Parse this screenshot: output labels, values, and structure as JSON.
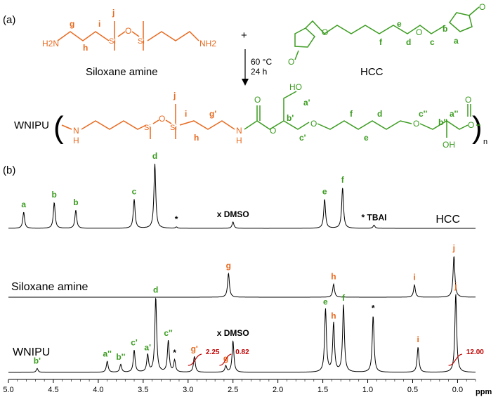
{
  "colors": {
    "siloxane": "#e8691e",
    "hcc": "#3a9b1f",
    "integral": "#c00000",
    "trace": "#000000"
  },
  "panel_a": {
    "label": "(a)",
    "siloxane_name": "Siloxane amine",
    "hcc_name": "HCC",
    "plus": "+",
    "conditions": [
      "60 °C",
      "24 h"
    ],
    "product_name": "WNIPU",
    "siloxane_letters": [
      "g",
      "h",
      "i",
      "j"
    ],
    "hcc_letters": [
      "a",
      "b",
      "c",
      "d",
      "e",
      "f"
    ],
    "product_letters_siloxane": [
      "i",
      "j",
      "g'",
      "h"
    ],
    "product_letters_hcc": [
      "a'",
      "b'",
      "c'",
      "d",
      "e",
      "f",
      "c''",
      "b''",
      "a''"
    ],
    "atoms": {
      "h2n": "H2N",
      "nh2": "NH2",
      "si": "Si",
      "o": "O",
      "n": "N",
      "h": "H",
      "ho": "HO",
      "oh": "OH",
      "n_sub": "n"
    }
  },
  "panel_b": {
    "label": "(b)"
  },
  "chart_data": {
    "type": "line",
    "title": "",
    "xlabel": "ppm",
    "xlim": [
      5.0,
      -0.2
    ],
    "x_reversed": true,
    "xticks": [
      "5.0",
      "4.5",
      "4.0",
      "3.5",
      "3.0",
      "2.5",
      "2.0",
      "1.5",
      "1.0",
      "0.5",
      "0.0"
    ],
    "series": [
      {
        "name": "HCC",
        "peaks": [
          {
            "ppm": 4.83,
            "height": 0.25,
            "label": "a",
            "color": "hcc"
          },
          {
            "ppm": 4.49,
            "height": 0.4,
            "label": "b",
            "color": "hcc"
          },
          {
            "ppm": 4.25,
            "height": 0.28,
            "label": "b",
            "color": "hcc"
          },
          {
            "ppm": 3.6,
            "height": 0.45,
            "label": "c",
            "color": "hcc"
          },
          {
            "ppm": 3.37,
            "height": 1.0,
            "label": "d",
            "color": "hcc"
          },
          {
            "ppm": 3.13,
            "height": 0.02,
            "label": "*",
            "color": "trace"
          },
          {
            "ppm": 2.5,
            "height": 0.1,
            "label": "x DMSO",
            "color": "trace"
          },
          {
            "ppm": 1.48,
            "height": 0.45,
            "label": "e",
            "color": "hcc"
          },
          {
            "ppm": 1.28,
            "height": 0.63,
            "label": "f",
            "color": "hcc"
          },
          {
            "ppm": 0.93,
            "height": 0.05,
            "label": "* TBAI",
            "color": "trace"
          }
        ]
      },
      {
        "name": "Siloxane amine",
        "peaks": [
          {
            "ppm": 2.55,
            "height": 0.55,
            "label": "g",
            "color": "siloxane"
          },
          {
            "ppm": 1.38,
            "height": 0.3,
            "label": "h",
            "color": "siloxane"
          },
          {
            "ppm": 0.48,
            "height": 0.28,
            "label": "i",
            "color": "siloxane"
          },
          {
            "ppm": 0.04,
            "height": 0.95,
            "label": "j",
            "color": "siloxane"
          }
        ]
      },
      {
        "name": "WNIPU",
        "peaks": [
          {
            "ppm": 4.68,
            "height": 0.05,
            "label": "b'",
            "color": "hcc"
          },
          {
            "ppm": 3.9,
            "height": 0.14,
            "label": "a''",
            "color": "hcc"
          },
          {
            "ppm": 3.75,
            "height": 0.1,
            "label": "b''",
            "color": "hcc"
          },
          {
            "ppm": 3.6,
            "height": 0.28,
            "label": "c'",
            "color": "hcc"
          },
          {
            "ppm": 3.45,
            "height": 0.22,
            "label": "a'",
            "color": "hcc"
          },
          {
            "ppm": 3.36,
            "height": 0.95,
            "label": "d",
            "color": "hcc"
          },
          {
            "ppm": 3.22,
            "height": 0.4,
            "label": "c''",
            "color": "hcc"
          },
          {
            "ppm": 3.15,
            "height": 0.15,
            "label": "*",
            "color": "trace"
          },
          {
            "ppm": 2.93,
            "height": 0.2,
            "label": "g'",
            "color": "siloxane"
          },
          {
            "ppm": 2.58,
            "height": 0.08,
            "label": "g",
            "color": "siloxane"
          },
          {
            "ppm": 2.5,
            "height": 0.4,
            "label": "x DMSO",
            "color": "trace"
          },
          {
            "ppm": 1.47,
            "height": 0.8,
            "label": "e",
            "color": "hcc"
          },
          {
            "ppm": 1.38,
            "height": 0.62,
            "label": "h",
            "color": "siloxane"
          },
          {
            "ppm": 1.27,
            "height": 0.85,
            "label": "f",
            "color": "hcc"
          },
          {
            "ppm": 0.94,
            "height": 0.72,
            "label": "*",
            "color": "trace"
          },
          {
            "ppm": 0.44,
            "height": 0.32,
            "label": "i",
            "color": "siloxane"
          },
          {
            "ppm": 0.02,
            "height": 1.0,
            "label": "j",
            "color": "siloxane"
          }
        ],
        "integrals": [
          {
            "from": 3.0,
            "to": 2.85,
            "value": "2.25"
          },
          {
            "from": 2.65,
            "to": 2.52,
            "value": "0.82"
          },
          {
            "from": 0.1,
            "to": -0.05,
            "value": "12.00"
          }
        ]
      }
    ]
  }
}
